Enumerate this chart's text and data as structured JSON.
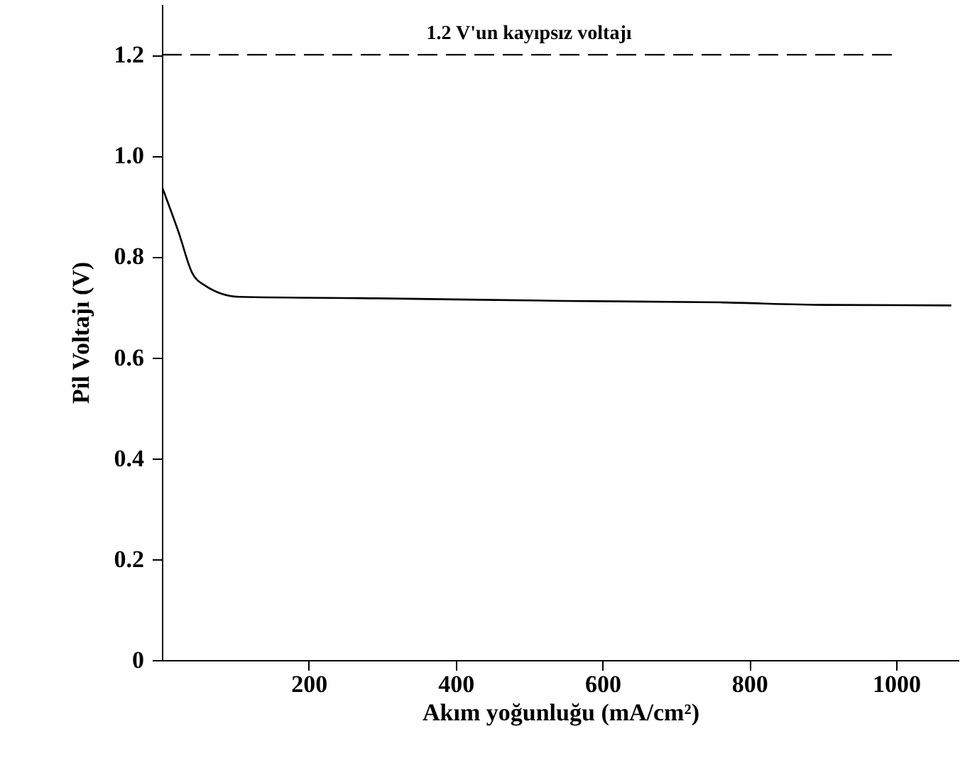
{
  "chart_data": {
    "type": "line",
    "xlabel": "Akım yoğunluğu (mA/cm²)",
    "ylabel": "Pil Voltajı (V)",
    "x": [
      1,
      23,
      41,
      58,
      105,
      296,
      545,
      760,
      903,
      1075
    ],
    "series": [
      {
        "color": "#000000",
        "values": [
          0.935,
          0.847,
          0.768,
          0.743,
          0.72,
          0.717,
          0.712,
          0.709,
          0.704,
          0.703
        ]
      }
    ],
    "xlim": [
      0,
      1085
    ],
    "xticks": [
      200,
      400,
      600,
      800,
      1000
    ],
    "ylim": [
      0,
      1.3
    ],
    "yticks": [
      0,
      {
        "value": 0.2,
        "label": "0.2"
      },
      {
        "value": 0.4,
        "label": "0.4"
      },
      {
        "value": 0.6,
        "label": "0.6"
      },
      {
        "value": 0.8,
        "label": "0.8"
      },
      {
        "value": 1.0,
        "label": "1.0"
      },
      {
        "value": 1.2,
        "label": "1.2"
      }
    ],
    "ref_lines": [
      {
        "axis": "y",
        "value": 1.2,
        "label": "1.2 V'un kayıpsız voltajı",
        "color": "#000000",
        "line_style": "dashed"
      }
    ],
    "grid": false,
    "marker": "none",
    "line_style": "solid"
  }
}
